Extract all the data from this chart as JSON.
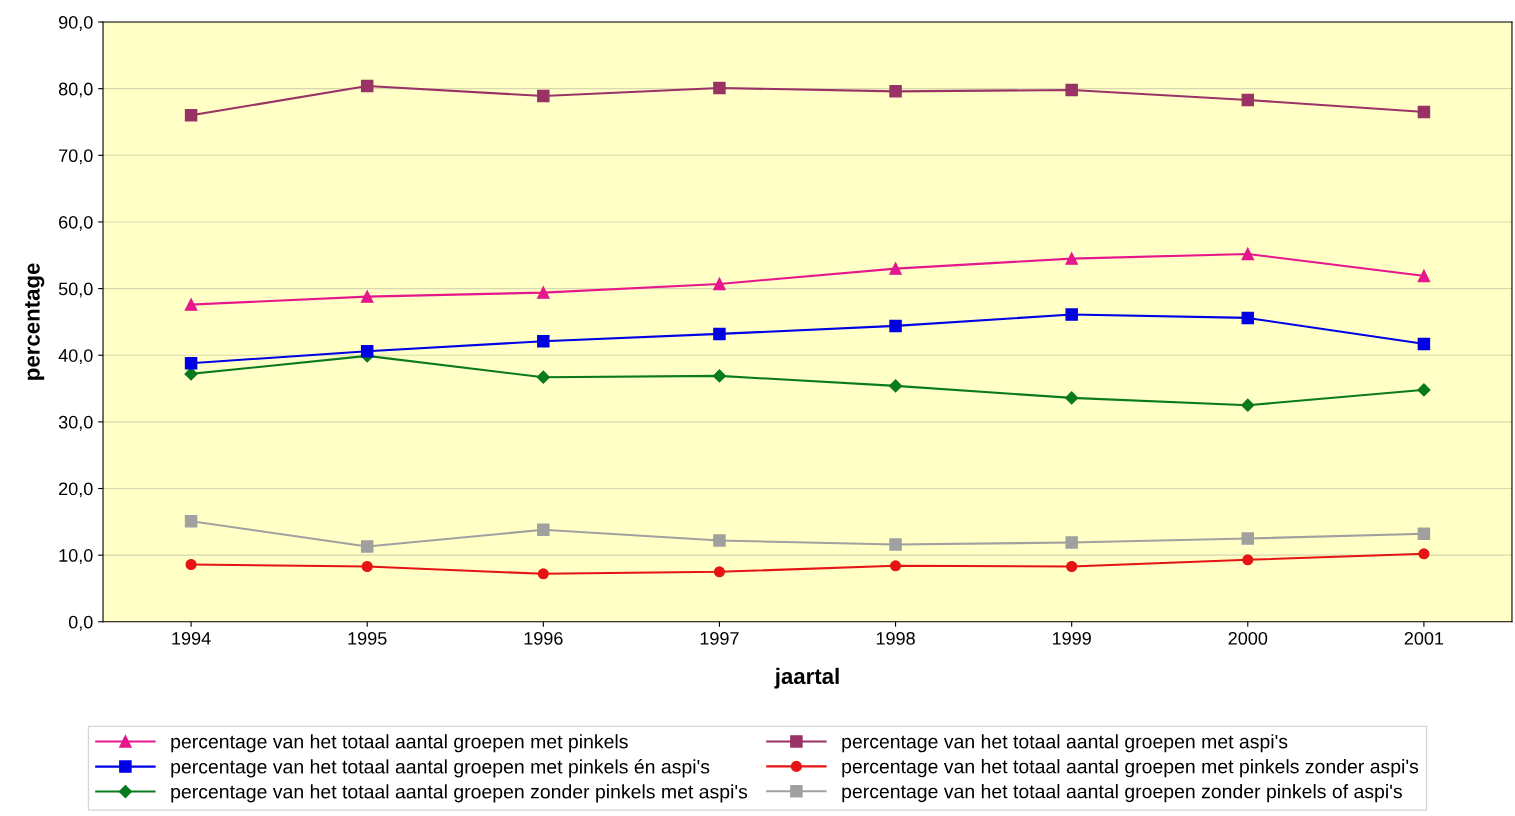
{
  "chart_data": {
    "type": "line",
    "xlabel": "jaartal",
    "ylabel": "percentage",
    "categories": [
      "1994",
      "1995",
      "1996",
      "1997",
      "1998",
      "1999",
      "2000",
      "2001"
    ],
    "ylim": [
      0,
      90
    ],
    "yticks": [
      {
        "value": 0,
        "label": "0,0"
      },
      {
        "value": 10,
        "label": "10,0"
      },
      {
        "value": 20,
        "label": "20,0"
      },
      {
        "value": 30,
        "label": "30,0"
      },
      {
        "value": 40,
        "label": "40,0"
      },
      {
        "value": 50,
        "label": "50,0"
      },
      {
        "value": 60,
        "label": "60,0"
      },
      {
        "value": 70,
        "label": "70,0"
      },
      {
        "value": 80,
        "label": "80,0"
      },
      {
        "value": 90,
        "label": "90,0"
      }
    ],
    "grid": "y",
    "legend": "bottom",
    "line_style": "solid",
    "series": [
      {
        "name": "percentage van het totaal aantal groepen met pinkels",
        "color": "#e6168c",
        "marker": "triangle",
        "values": [
          47.6,
          48.8,
          49.4,
          50.7,
          53.0,
          54.5,
          55.2,
          51.9
        ]
      },
      {
        "name": "percentage van het totaal aantal groepen met pinkels én aspi's",
        "color": "#0000e6",
        "marker": "square",
        "values": [
          38.8,
          40.6,
          42.1,
          43.2,
          44.4,
          46.1,
          45.6,
          41.7
        ]
      },
      {
        "name": "percentage van het totaal aantal groepen zonder pinkels met aspi's",
        "color": "#0a7a1e",
        "marker": "diamond",
        "values": [
          37.2,
          39.9,
          36.7,
          36.9,
          35.4,
          33.6,
          32.5,
          34.8
        ]
      },
      {
        "name": "percentage van het totaal aantal groepen met aspi's",
        "color": "#993366",
        "marker": "square",
        "values": [
          76.0,
          80.4,
          78.9,
          80.1,
          79.6,
          79.8,
          78.3,
          76.5
        ]
      },
      {
        "name": "percentage van het totaal aantal groepen met pinkels zonder aspi's",
        "color": "#e61414",
        "marker": "circle",
        "values": [
          8.6,
          8.3,
          7.2,
          7.5,
          8.4,
          8.3,
          9.3,
          10.2
        ]
      },
      {
        "name": "percentage van het totaal aantal groepen zonder pinkels of aspi's",
        "color": "#a0a0a0",
        "marker": "square",
        "values": [
          15.1,
          11.3,
          13.8,
          12.2,
          11.6,
          11.9,
          12.5,
          13.2
        ]
      }
    ]
  }
}
